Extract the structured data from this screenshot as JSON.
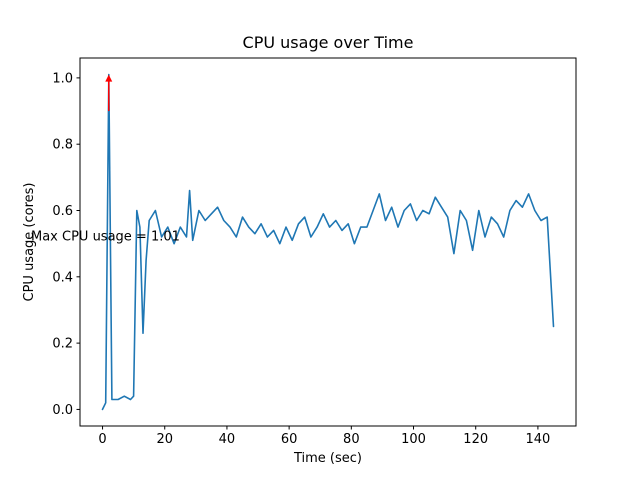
{
  "figure": {
    "background": "#ffffff"
  },
  "chart_data": {
    "type": "line",
    "title": "CPU usage over Time",
    "xlabel": "Time (sec)",
    "ylabel": "CPU usage (cores)",
    "line_color": "#1f77b4",
    "grid": false,
    "legend": "none",
    "xlim": [
      -7.25,
      152.25
    ],
    "ylim": [
      -0.05,
      1.06
    ],
    "xticks": [
      0,
      20,
      40,
      60,
      80,
      100,
      120,
      140
    ],
    "xtick_labels": [
      "0",
      "20",
      "40",
      "60",
      "80",
      "100",
      "120",
      "140"
    ],
    "yticks": [
      0.0,
      0.2,
      0.4,
      0.6,
      0.8,
      1.0
    ],
    "ytick_labels": [
      "0.0",
      "0.2",
      "0.4",
      "0.6",
      "0.8",
      "1.0"
    ],
    "x": [
      0,
      1,
      2,
      3,
      5,
      7,
      9,
      10,
      11,
      12,
      13,
      14,
      15,
      17,
      19,
      21,
      23,
      25,
      27,
      28,
      29,
      31,
      33,
      35,
      37,
      39,
      41,
      43,
      45,
      47,
      49,
      51,
      53,
      55,
      57,
      59,
      61,
      63,
      65,
      67,
      69,
      71,
      73,
      75,
      77,
      79,
      81,
      83,
      85,
      87,
      89,
      91,
      93,
      95,
      97,
      99,
      101,
      103,
      105,
      107,
      109,
      111,
      113,
      115,
      117,
      119,
      121,
      123,
      125,
      127,
      129,
      131,
      133,
      135,
      137,
      139,
      141,
      143,
      145
    ],
    "y": [
      0.0,
      0.02,
      1.01,
      0.03,
      0.03,
      0.04,
      0.03,
      0.04,
      0.6,
      0.55,
      0.23,
      0.45,
      0.57,
      0.6,
      0.52,
      0.55,
      0.5,
      0.55,
      0.52,
      0.66,
      0.51,
      0.6,
      0.57,
      0.59,
      0.61,
      0.57,
      0.55,
      0.52,
      0.58,
      0.55,
      0.53,
      0.56,
      0.52,
      0.54,
      0.5,
      0.55,
      0.51,
      0.56,
      0.58,
      0.52,
      0.55,
      0.59,
      0.55,
      0.57,
      0.54,
      0.56,
      0.5,
      0.55,
      0.55,
      0.6,
      0.65,
      0.57,
      0.61,
      0.55,
      0.6,
      0.62,
      0.57,
      0.6,
      0.59,
      0.64,
      0.61,
      0.58,
      0.47,
      0.6,
      0.57,
      0.48,
      0.6,
      0.52,
      0.58,
      0.56,
      0.52,
      0.6,
      0.63,
      0.61,
      0.65,
      0.6,
      0.57,
      0.58,
      0.25
    ],
    "annotation": {
      "text": "Max CPU usage = 1.01",
      "color": "#ff0000",
      "xy": [
        2,
        1.01
      ],
      "text_xy": [
        -23,
        0.51
      ],
      "arrow_tail_y": 0.9
    }
  }
}
